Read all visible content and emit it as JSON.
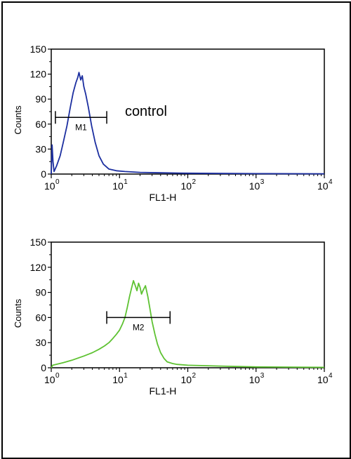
{
  "chart_data": [
    {
      "type": "line",
      "title": "",
      "xlabel": "FL1-H",
      "ylabel": "Counts",
      "x_scale": "log",
      "xlim": [
        1,
        10000
      ],
      "ylim": [
        0,
        150
      ],
      "y_ticks": [
        0,
        30,
        60,
        90,
        120,
        150
      ],
      "x_ticks": [
        {
          "base": "10",
          "exp": "0"
        },
        {
          "base": "10",
          "exp": "1"
        },
        {
          "base": "10",
          "exp": "2"
        },
        {
          "base": "10",
          "exp": "3"
        },
        {
          "base": "10",
          "exp": "4"
        }
      ],
      "annotation": "control",
      "marker": {
        "label": "M1",
        "x_range": [
          1.15,
          6.5
        ],
        "y": 68
      },
      "grid": false,
      "series": [
        {
          "color": "#1c2fa0",
          "points": [
            [
              1.0,
              0
            ],
            [
              1.03,
              35
            ],
            [
              1.06,
              15
            ],
            [
              1.1,
              3
            ],
            [
              1.2,
              10
            ],
            [
              1.35,
              22
            ],
            [
              1.5,
              38
            ],
            [
              1.7,
              58
            ],
            [
              1.9,
              80
            ],
            [
              2.1,
              98
            ],
            [
              2.3,
              110
            ],
            [
              2.45,
              116
            ],
            [
              2.55,
              122
            ],
            [
              2.7,
              113
            ],
            [
              2.85,
              118
            ],
            [
              3.0,
              105
            ],
            [
              3.2,
              96
            ],
            [
              3.5,
              80
            ],
            [
              3.9,
              58
            ],
            [
              4.4,
              38
            ],
            [
              5.0,
              22
            ],
            [
              5.8,
              12
            ],
            [
              7.0,
              6
            ],
            [
              9.0,
              4
            ],
            [
              12,
              3
            ],
            [
              20,
              2
            ],
            [
              40,
              1.5
            ],
            [
              100,
              1
            ],
            [
              1000,
              0.5
            ],
            [
              10000,
              0.3
            ]
          ]
        }
      ]
    },
    {
      "type": "line",
      "title": "",
      "xlabel": "FL1-H",
      "ylabel": "Counts",
      "x_scale": "log",
      "xlim": [
        1,
        10000
      ],
      "ylim": [
        0,
        150
      ],
      "y_ticks": [
        0,
        30,
        60,
        90,
        120,
        150
      ],
      "x_ticks": [
        {
          "base": "10",
          "exp": "0"
        },
        {
          "base": "10",
          "exp": "1"
        },
        {
          "base": "10",
          "exp": "2"
        },
        {
          "base": "10",
          "exp": "3"
        },
        {
          "base": "10",
          "exp": "4"
        }
      ],
      "annotation": "",
      "marker": {
        "label": "M2",
        "x_range": [
          6.5,
          55
        ],
        "y": 60
      },
      "grid": false,
      "series": [
        {
          "color": "#5ec232",
          "points": [
            [
              1.0,
              0
            ],
            [
              1.05,
              3
            ],
            [
              1.5,
              6
            ],
            [
              2.0,
              9
            ],
            [
              3.0,
              14
            ],
            [
              4.0,
              18
            ],
            [
              5.0,
              22
            ],
            [
              6.0,
              26
            ],
            [
              7.0,
              30
            ],
            [
              8.0,
              35
            ],
            [
              9.0,
              40
            ],
            [
              10,
              45
            ],
            [
              11,
              52
            ],
            [
              12,
              60
            ],
            [
              13,
              72
            ],
            [
              14,
              85
            ],
            [
              15,
              95
            ],
            [
              16,
              104
            ],
            [
              17,
              98
            ],
            [
              18,
              92
            ],
            [
              19,
              101
            ],
            [
              20,
              96
            ],
            [
              21,
              88
            ],
            [
              22,
              92
            ],
            [
              24,
              98
            ],
            [
              26,
              85
            ],
            [
              28,
              70
            ],
            [
              30,
              55
            ],
            [
              33,
              40
            ],
            [
              36,
              28
            ],
            [
              40,
              18
            ],
            [
              45,
              11
            ],
            [
              50,
              7
            ],
            [
              60,
              5
            ],
            [
              70,
              4
            ],
            [
              100,
              3
            ],
            [
              300,
              2
            ],
            [
              1000,
              1
            ],
            [
              10000,
              0.5
            ]
          ]
        }
      ]
    }
  ]
}
